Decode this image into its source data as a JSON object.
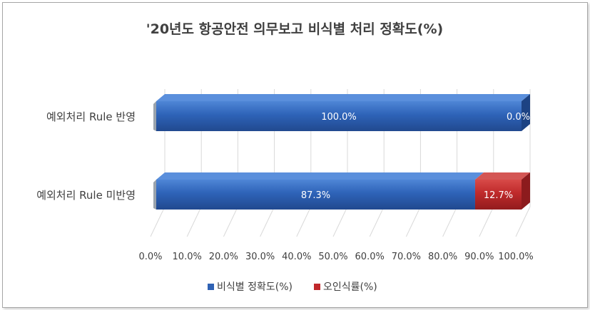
{
  "chart_data": {
    "type": "bar",
    "orientation": "horizontal",
    "stacked": true,
    "percent_stacked": true,
    "three_d": true,
    "title": "'20년도 항공안전 의무보고 비식별 처리 정확도(%)",
    "categories": [
      "예외처리 Rule 반영",
      "예외처리 Rule 미반영"
    ],
    "series": [
      {
        "name": "비식별 정확도(%)",
        "values": [
          100.0,
          87.3
        ],
        "labels": [
          "100.0%",
          "87.3%"
        ],
        "color": "#2f62b4"
      },
      {
        "name": "오인식률(%)",
        "values": [
          0.0,
          12.7
        ],
        "labels": [
          "0.0%",
          "12.7%"
        ],
        "color": "#c0282b"
      }
    ],
    "xlim": [
      0,
      100
    ],
    "x_ticks": [
      "0.0%",
      "10.0%",
      "20.0%",
      "30.0%",
      "40.0%",
      "50.0%",
      "60.0%",
      "70.0%",
      "80.0%",
      "90.0%",
      "100.0%"
    ],
    "grid": true,
    "legend_position": "bottom"
  }
}
